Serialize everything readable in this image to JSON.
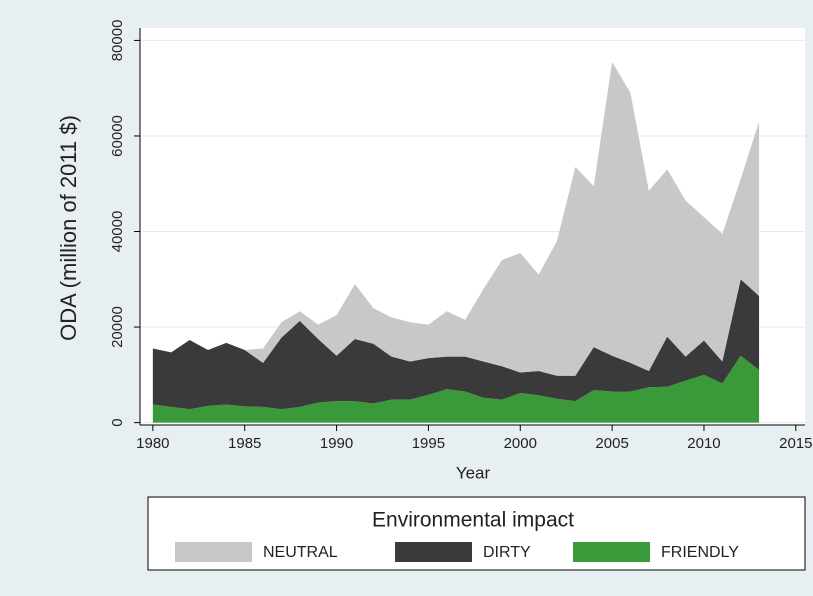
{
  "chart_data": {
    "type": "area",
    "stacked": true,
    "x_label": "Year",
    "y_label": "ODA (million of 2011 $)",
    "legend_title": "Environmental impact",
    "x": [
      1980,
      1981,
      1982,
      1983,
      1984,
      1985,
      1986,
      1987,
      1988,
      1989,
      1990,
      1991,
      1992,
      1993,
      1994,
      1995,
      1996,
      1997,
      1998,
      1999,
      2000,
      2001,
      2002,
      2003,
      2004,
      2005,
      2006,
      2007,
      2008,
      2009,
      2010,
      2011,
      2012,
      2013
    ],
    "series": [
      {
        "name": "FRIENDLY",
        "color": "#3a9a3a",
        "values": [
          3800,
          3300,
          2800,
          3500,
          3800,
          3400,
          3300,
          2800,
          3300,
          4200,
          4500,
          4500,
          4000,
          4800,
          4800,
          5800,
          7000,
          6500,
          5200,
          4800,
          6200,
          5700,
          5000,
          4500,
          6800,
          6500,
          6500,
          7400,
          7500,
          8800,
          10000,
          8200,
          14000,
          11000
        ]
      },
      {
        "name": "DIRTY",
        "color": "#3a3a3a",
        "values": [
          11700,
          11400,
          14500,
          11700,
          12900,
          11800,
          9200,
          15000,
          18000,
          13300,
          9500,
          13000,
          12500,
          9000,
          8000,
          7700,
          6800,
          7300,
          7600,
          7000,
          4300,
          5100,
          4800,
          5300,
          9000,
          7500,
          6000,
          3400,
          10500,
          5000,
          7200,
          4600,
          16000,
          15500
        ]
      },
      {
        "name": "NEUTRAL",
        "color": "#c8c8c8",
        "values": [
          0,
          0,
          0,
          0,
          0,
          0,
          3000,
          3200,
          2000,
          3000,
          8500,
          11500,
          7500,
          8200,
          8200,
          7000,
          9500,
          7700,
          15200,
          22200,
          25000,
          20200,
          28200,
          43700,
          33700,
          61500,
          56500,
          37700,
          35000,
          32700,
          25800,
          26700,
          21000,
          36500
        ]
      }
    ],
    "xlim": [
      1979.3,
      2015.5
    ],
    "ylim": [
      -500,
      82600
    ],
    "xticks": [
      1980,
      1985,
      1990,
      1995,
      2000,
      2005,
      2010,
      2015
    ],
    "yticks": [
      0,
      20000,
      40000,
      60000,
      80000
    ],
    "grid": true
  }
}
